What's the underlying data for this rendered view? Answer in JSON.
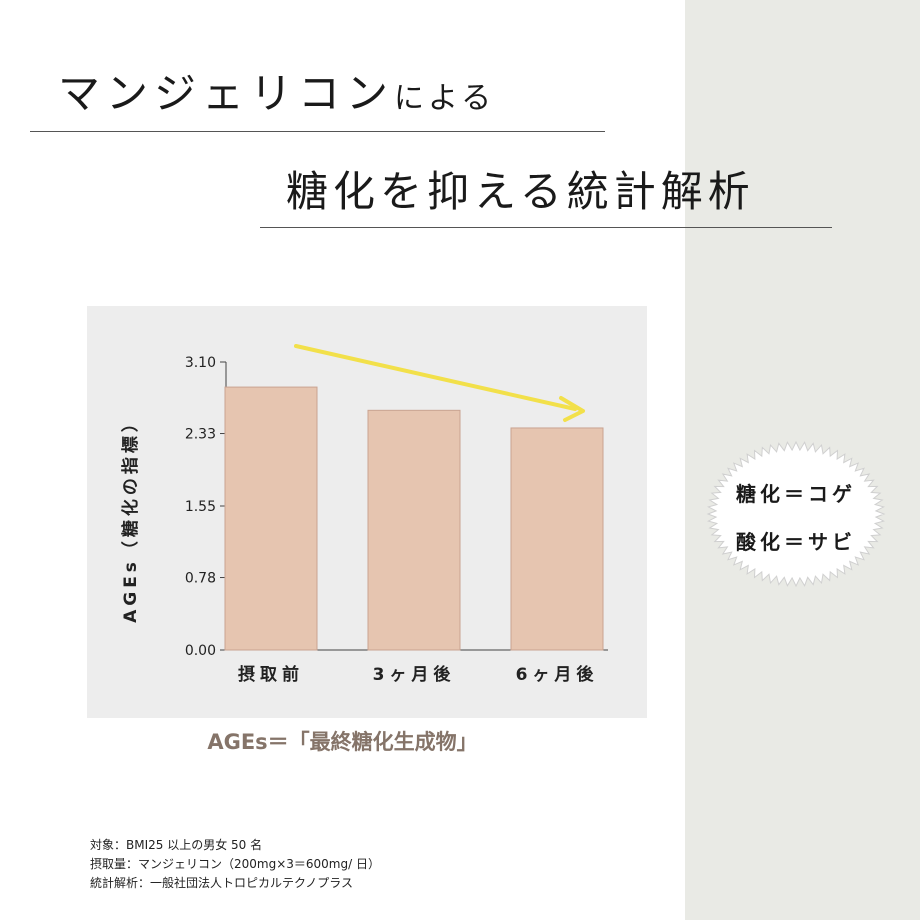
{
  "header": {
    "title_main": "マンジェリコン",
    "title_suffix": "による",
    "subtitle_main": "糖化を抑える統計解析",
    "subtitle_hiragana": "を"
  },
  "chart_data": {
    "type": "bar",
    "categories": [
      "摂取前",
      "3ヶ月後",
      "6ヶ月後"
    ],
    "values": [
      2.83,
      2.58,
      2.39
    ],
    "ylabel": "AGEs（糖化の指標）",
    "yticks": [
      "3.10",
      "2.33",
      "1.55",
      "0.78",
      "0.00"
    ],
    "ytick_values": [
      3.1,
      2.33,
      1.55,
      0.78,
      0.0
    ],
    "ylim": [
      0,
      3.1
    ],
    "grid": false,
    "colors": {
      "bar": "#e6c5b0",
      "bar_edge": "#c9a391",
      "trend_arrow": "#f2e04a"
    },
    "annotations": [
      "downward trend arrow"
    ]
  },
  "definition": "AGEs＝「最終糖化生成物」",
  "badge": {
    "line1": "糖化＝コゲ",
    "line2": "酸化＝サビ"
  },
  "notes": [
    "対象：BMI25 以上の男女 50 名",
    "摂取量：マンジェリコン（200mg×3＝600mg/ 日）",
    "統計解析：一般社団法人トロピカルテクノプラス"
  ],
  "colors": {
    "side_panel": "#e9eae5",
    "chart_background": "#ededed",
    "definition_text": "#857469"
  }
}
